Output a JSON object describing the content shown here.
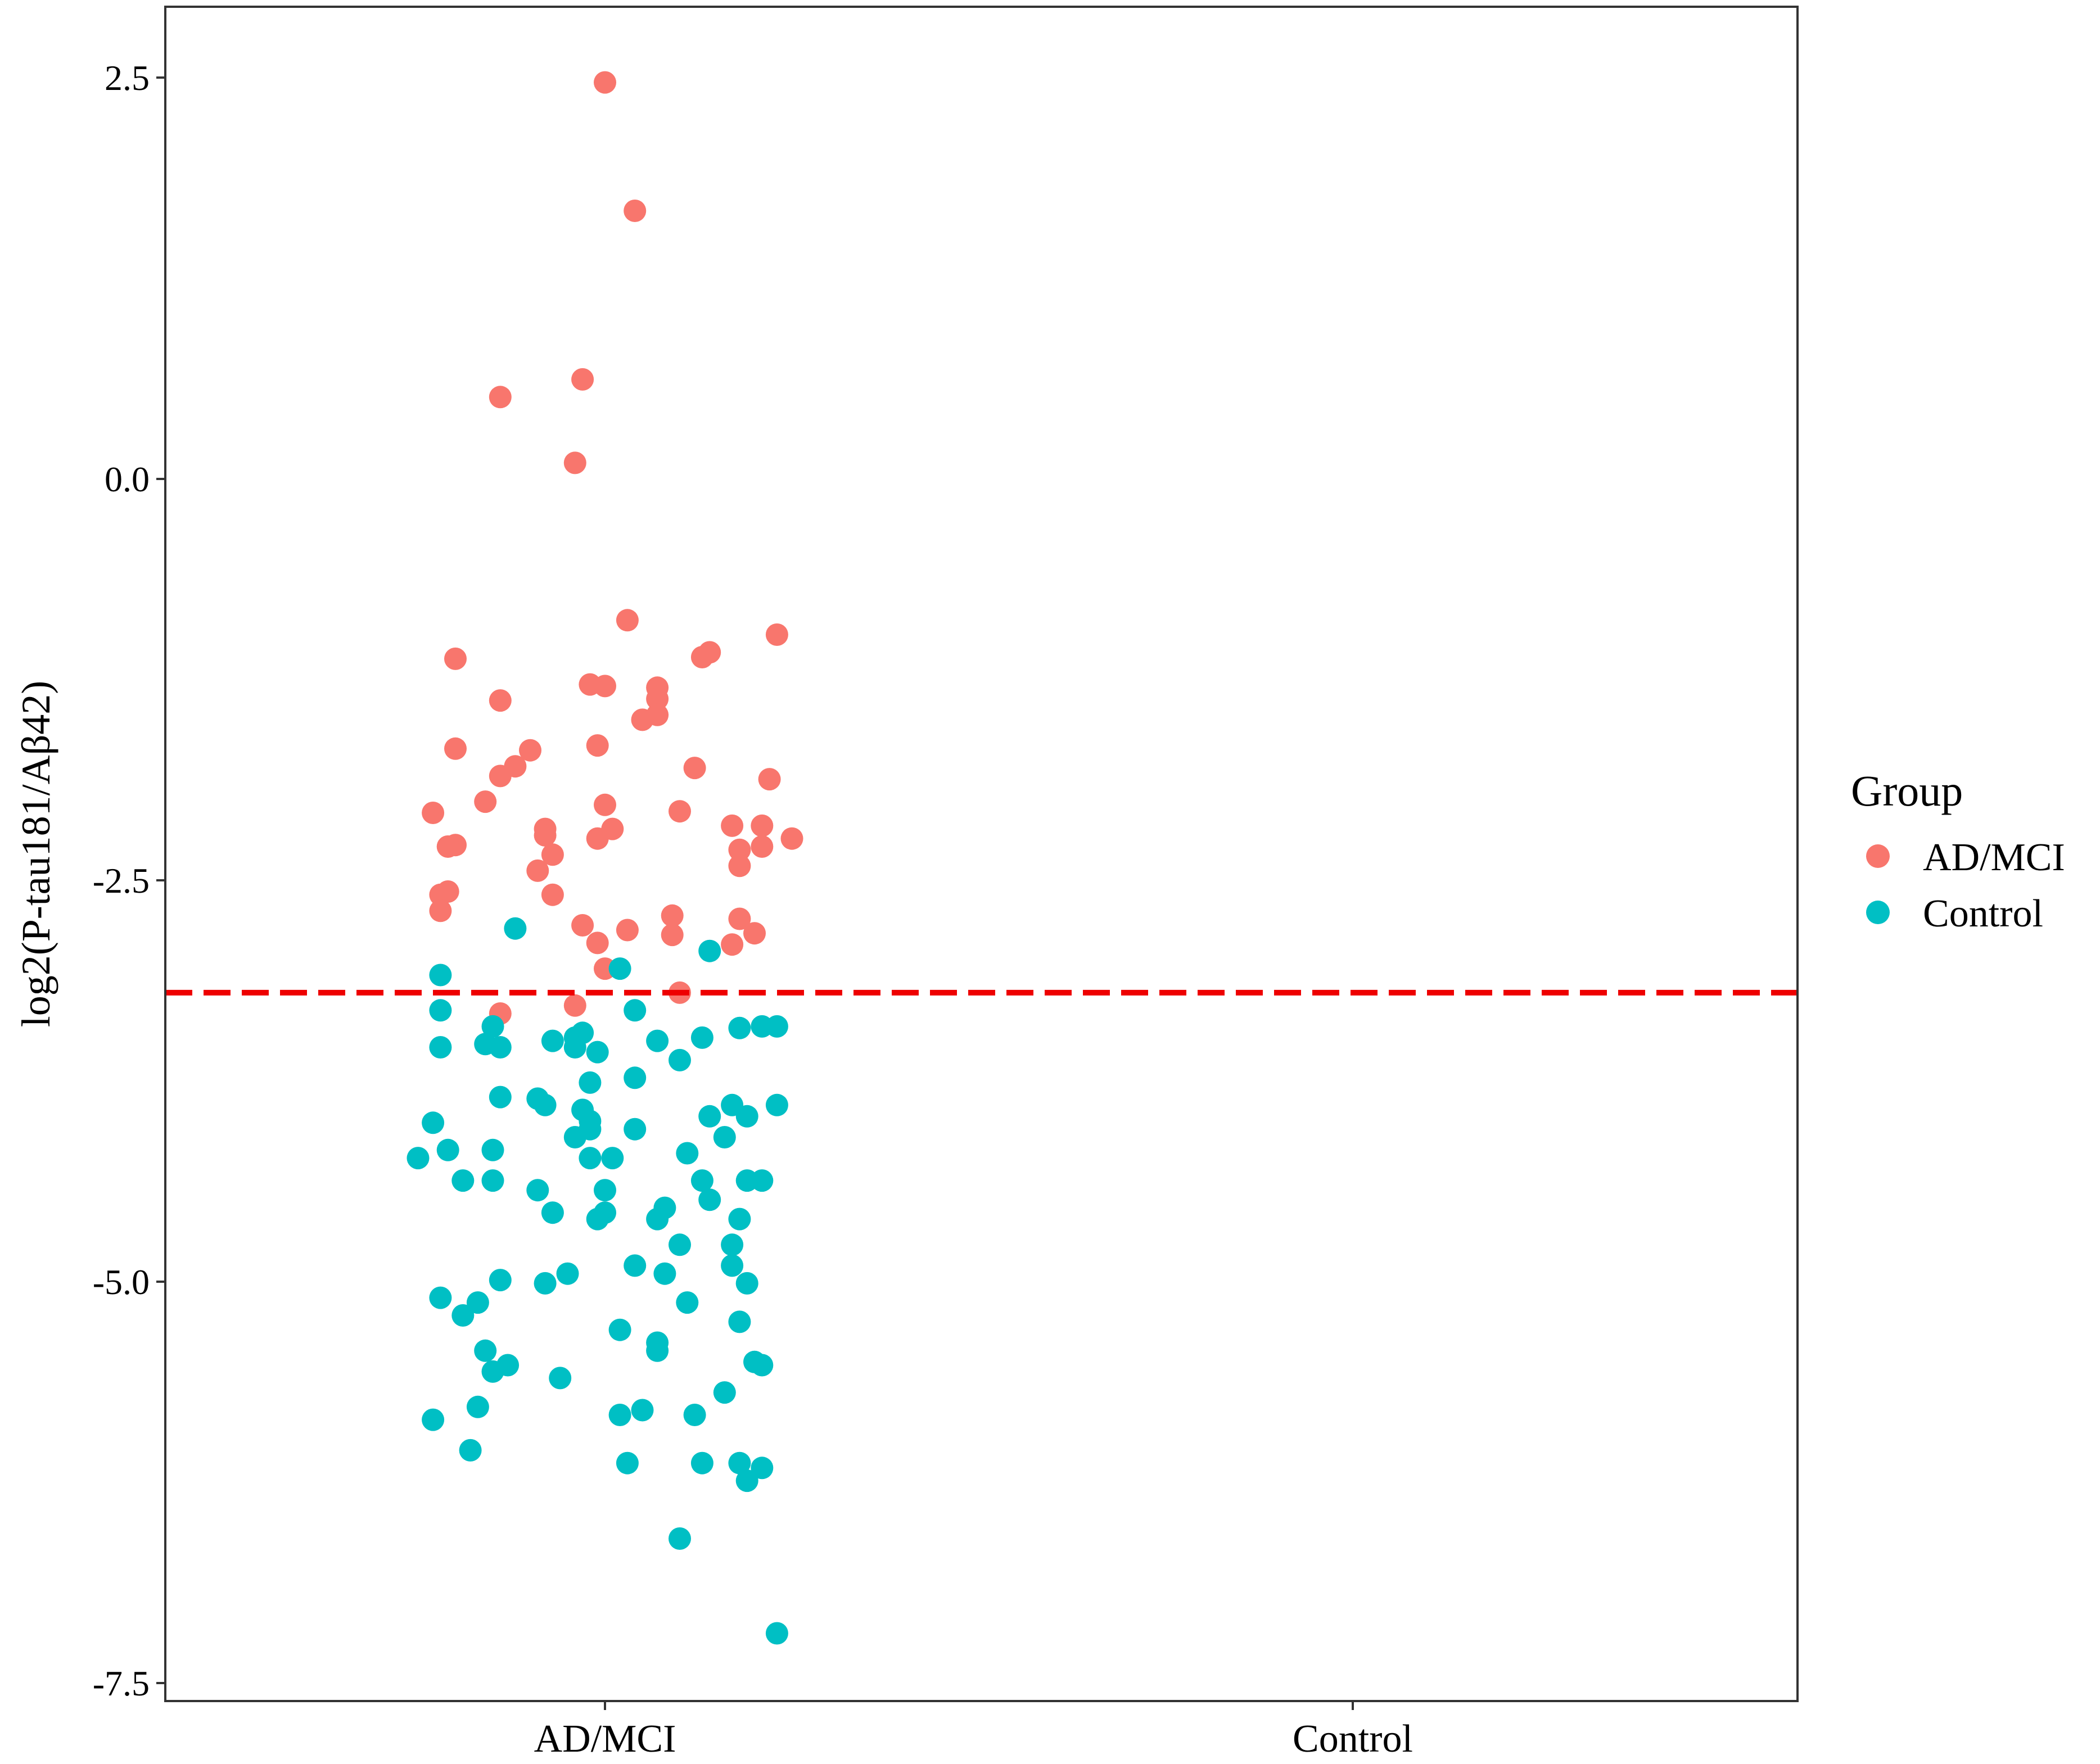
{
  "chart_data": {
    "type": "scatter",
    "title": "",
    "xlabel": "",
    "ylabel": "log2(P-tau181/Aβ42)",
    "categories": [
      "AD/MCI",
      "Control"
    ],
    "y_ticks": [
      "2.5",
      "0.0",
      "-2.5",
      "-5.0",
      "-7.5"
    ],
    "y_tick_values": [
      2.5,
      0.0,
      -2.5,
      -5.0,
      -7.5
    ],
    "ylim": [
      -7.7,
      3.0
    ],
    "grid": false,
    "legend": {
      "title": "Group",
      "placement": "right",
      "entries": [
        {
          "name": "AD/MCI",
          "color": "#F8766D"
        },
        {
          "name": "Control",
          "color": "#00BFC4"
        }
      ]
    },
    "reference_line": {
      "y": -3.2,
      "color": "#EE0000",
      "style": "dashed"
    },
    "series": [
      {
        "name": "AD/MCI",
        "color": "#F8766D",
        "points": [
          [
            0.0,
            2.47
          ],
          [
            0.04,
            1.67
          ],
          [
            -0.03,
            0.62
          ],
          [
            -0.14,
            0.51
          ],
          [
            -0.04,
            0.1
          ],
          [
            0.03,
            -0.88
          ],
          [
            0.23,
            -0.97
          ],
          [
            0.14,
            -1.08
          ],
          [
            0.13,
            -1.11
          ],
          [
            -0.2,
            -1.12
          ],
          [
            -0.02,
            -1.28
          ],
          [
            0.0,
            -1.29
          ],
          [
            0.07,
            -1.3
          ],
          [
            0.07,
            -1.37
          ],
          [
            -0.14,
            -1.38
          ],
          [
            0.07,
            -1.47
          ],
          [
            0.05,
            -1.5
          ],
          [
            -0.01,
            -1.66
          ],
          [
            -0.2,
            -1.68
          ],
          [
            -0.1,
            -1.69
          ],
          [
            -0.12,
            -1.79
          ],
          [
            0.12,
            -1.8
          ],
          [
            -0.14,
            -1.85
          ],
          [
            0.22,
            -1.87
          ],
          [
            -0.16,
            -2.01
          ],
          [
            0.0,
            -2.03
          ],
          [
            0.1,
            -2.07
          ],
          [
            -0.23,
            -2.08
          ],
          [
            0.17,
            -2.16
          ],
          [
            0.21,
            -2.16
          ],
          [
            -0.08,
            -2.18
          ],
          [
            0.01,
            -2.18
          ],
          [
            -0.08,
            -2.22
          ],
          [
            -0.01,
            -2.24
          ],
          [
            0.25,
            -2.24
          ],
          [
            -0.2,
            -2.28
          ],
          [
            -0.21,
            -2.29
          ],
          [
            0.21,
            -2.29
          ],
          [
            0.18,
            -2.31
          ],
          [
            -0.07,
            -2.34
          ],
          [
            0.18,
            -2.41
          ],
          [
            -0.09,
            -2.44
          ],
          [
            -0.21,
            -2.57
          ],
          [
            -0.22,
            -2.59
          ],
          [
            -0.07,
            -2.59
          ],
          [
            -0.22,
            -2.69
          ],
          [
            0.09,
            -2.72
          ],
          [
            0.18,
            -2.74
          ],
          [
            -0.03,
            -2.78
          ],
          [
            0.03,
            -2.81
          ],
          [
            0.2,
            -2.83
          ],
          [
            0.09,
            -2.84
          ],
          [
            -0.01,
            -2.89
          ],
          [
            0.17,
            -2.9
          ],
          [
            0.0,
            -3.05
          ],
          [
            0.1,
            -3.2
          ],
          [
            -0.04,
            -3.28
          ],
          [
            -0.14,
            -3.33
          ]
        ]
      },
      {
        "name": "Control",
        "color": "#00BFC4",
        "points": [
          [
            -0.12,
            -2.8
          ],
          [
            0.14,
            -2.94
          ],
          [
            0.02,
            -3.05
          ],
          [
            -0.22,
            -3.09
          ],
          [
            -0.22,
            -3.31
          ],
          [
            0.04,
            -3.31
          ],
          [
            -0.15,
            -3.41
          ],
          [
            0.21,
            -3.41
          ],
          [
            0.23,
            -3.41
          ],
          [
            0.18,
            -3.42
          ],
          [
            -0.03,
            -3.45
          ],
          [
            -0.04,
            -3.48
          ],
          [
            0.13,
            -3.48
          ],
          [
            -0.07,
            -3.5
          ],
          [
            0.07,
            -3.5
          ],
          [
            -0.16,
            -3.52
          ],
          [
            -0.22,
            -3.54
          ],
          [
            -0.14,
            -3.54
          ],
          [
            -0.04,
            -3.54
          ],
          [
            -0.01,
            -3.57
          ],
          [
            0.1,
            -3.62
          ],
          [
            0.04,
            -3.73
          ],
          [
            -0.02,
            -3.76
          ],
          [
            -0.14,
            -3.85
          ],
          [
            -0.09,
            -3.86
          ],
          [
            -0.08,
            -3.9
          ],
          [
            0.17,
            -3.9
          ],
          [
            0.23,
            -3.9
          ],
          [
            -0.03,
            -3.93
          ],
          [
            -0.02,
            -4.0
          ],
          [
            0.14,
            -3.97
          ],
          [
            0.19,
            -3.97
          ],
          [
            -0.23,
            -4.01
          ],
          [
            -0.02,
            -4.05
          ],
          [
            0.04,
            -4.05
          ],
          [
            -0.04,
            -4.1
          ],
          [
            0.16,
            -4.1
          ],
          [
            -0.21,
            -4.18
          ],
          [
            -0.15,
            -4.18
          ],
          [
            0.11,
            -4.2
          ],
          [
            -0.25,
            -4.23
          ],
          [
            -0.02,
            -4.23
          ],
          [
            0.01,
            -4.23
          ],
          [
            -0.15,
            -4.37
          ],
          [
            0.13,
            -4.37
          ],
          [
            -0.19,
            -4.37
          ],
          [
            0.19,
            -4.37
          ],
          [
            0.21,
            -4.37
          ],
          [
            -0.09,
            -4.43
          ],
          [
            0.0,
            -4.43
          ],
          [
            0.14,
            -4.49
          ],
          [
            0.08,
            -4.54
          ],
          [
            -0.07,
            -4.57
          ],
          [
            0.0,
            -4.57
          ],
          [
            -0.01,
            -4.61
          ],
          [
            0.07,
            -4.61
          ],
          [
            0.18,
            -4.61
          ],
          [
            0.1,
            -4.77
          ],
          [
            0.17,
            -4.77
          ],
          [
            0.04,
            -4.9
          ],
          [
            0.17,
            -4.9
          ],
          [
            -0.05,
            -4.95
          ],
          [
            0.08,
            -4.95
          ],
          [
            -0.14,
            -4.99
          ],
          [
            -0.08,
            -5.01
          ],
          [
            0.19,
            -5.01
          ],
          [
            -0.22,
            -5.1
          ],
          [
            -0.17,
            -5.13
          ],
          [
            0.11,
            -5.13
          ],
          [
            -0.19,
            -5.21
          ],
          [
            0.18,
            -5.25
          ],
          [
            0.02,
            -5.3
          ],
          [
            0.07,
            -5.38
          ],
          [
            -0.16,
            -5.43
          ],
          [
            0.07,
            -5.43
          ],
          [
            0.2,
            -5.5
          ],
          [
            -0.13,
            -5.52
          ],
          [
            0.21,
            -5.52
          ],
          [
            -0.15,
            -5.56
          ],
          [
            -0.06,
            -5.6
          ],
          [
            0.16,
            -5.69
          ],
          [
            -0.17,
            -5.78
          ],
          [
            0.05,
            -5.8
          ],
          [
            0.02,
            -5.83
          ],
          [
            0.12,
            -5.83
          ],
          [
            -0.23,
            -5.86
          ],
          [
            -0.18,
            -6.05
          ],
          [
            0.03,
            -6.13
          ],
          [
            0.13,
            -6.13
          ],
          [
            0.18,
            -6.13
          ],
          [
            0.21,
            -6.16
          ],
          [
            0.19,
            -6.24
          ],
          [
            0.1,
            -6.6
          ],
          [
            0.23,
            -7.19
          ]
        ]
      }
    ]
  }
}
